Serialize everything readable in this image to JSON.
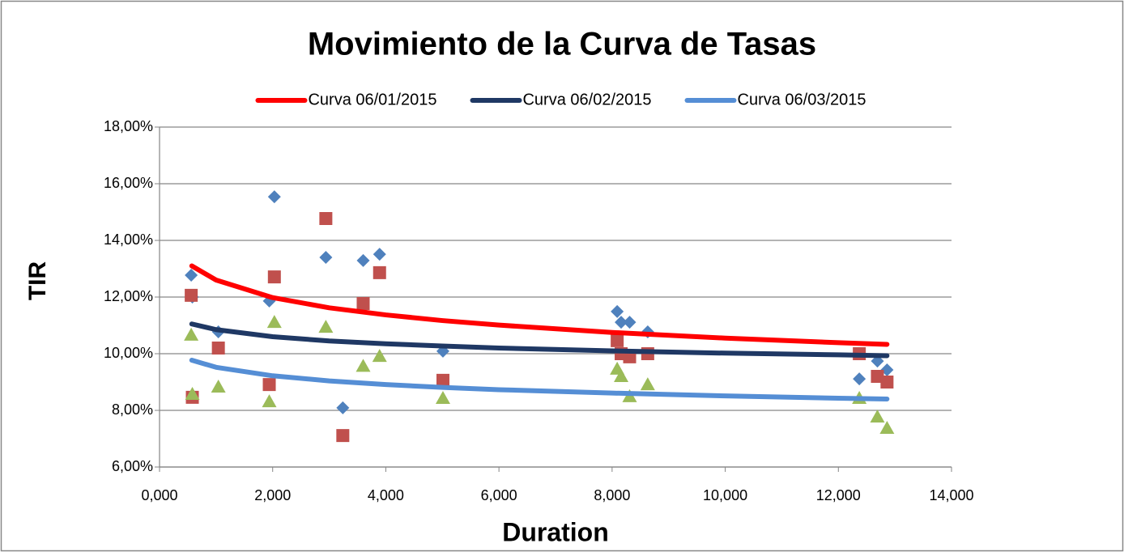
{
  "chart_data": {
    "type": "scatter",
    "title": "Movimiento de la Curva de Tasas",
    "xlabel": "Duration",
    "ylabel": "TIR",
    "xlim": [
      0,
      14
    ],
    "xticks": [
      {
        "value": 0,
        "label": "0,000"
      },
      {
        "value": 2,
        "label": "2,000"
      },
      {
        "value": 4,
        "label": "4,000"
      },
      {
        "value": 6,
        "label": "6,000"
      },
      {
        "value": 8,
        "label": "8,000"
      },
      {
        "value": 10,
        "label": "10,000"
      },
      {
        "value": 12,
        "label": "12,000"
      },
      {
        "value": 14,
        "label": "14,000"
      }
    ],
    "ylim": [
      6,
      18
    ],
    "yticks": [
      {
        "value": 6,
        "label": "6,00%"
      },
      {
        "value": 8,
        "label": "8,00%"
      },
      {
        "value": 10,
        "label": "10,00%"
      },
      {
        "value": 12,
        "label": "12,00%"
      },
      {
        "value": 14,
        "label": "14,00%"
      },
      {
        "value": 16,
        "label": "16,00%"
      },
      {
        "value": 18,
        "label": "18,00%"
      }
    ],
    "grid": true,
    "legend": "top",
    "x": [
      0.56,
      0.58,
      1.04,
      1.94,
      2.03,
      2.94,
      3.24,
      3.6,
      3.89,
      5.01,
      8.09,
      8.16,
      8.31,
      8.63,
      12.37,
      12.69,
      12.86
    ],
    "series": [
      {
        "color": "#4f81bd",
        "marker": "diamond",
        "values": [
          12.77,
          12.0,
          10.77,
          11.86,
          15.54,
          13.4,
          8.09,
          13.29,
          13.51,
          10.09,
          11.49,
          11.11,
          11.11,
          10.77,
          9.11,
          9.74,
          9.43
        ]
      },
      {
        "color": "#c0504d",
        "marker": "square",
        "values": [
          12.06,
          8.46,
          10.2,
          8.91,
          12.71,
          14.77,
          7.11,
          11.77,
          12.86,
          9.06,
          10.46,
          10.0,
          9.89,
          10.0,
          10.0,
          9.2,
          9.0
        ]
      },
      {
        "color": "#9bbb59",
        "marker": "triangle",
        "values": [
          10.66,
          8.57,
          8.83,
          8.31,
          11.11,
          10.94,
          null,
          9.56,
          9.91,
          8.43,
          9.46,
          9.2,
          8.49,
          8.91,
          8.43,
          7.77,
          7.37
        ]
      }
    ],
    "curves": [
      {
        "name": "Curva 06/01/2015",
        "color": "#ff0000",
        "x": [
          0.57,
          1,
          2,
          3,
          4,
          5,
          6,
          8,
          10,
          12,
          12.86
        ],
        "values": [
          13.1,
          12.6,
          11.98,
          11.62,
          11.37,
          11.17,
          11.01,
          10.75,
          10.55,
          10.39,
          10.33
        ]
      },
      {
        "name": "Curva 06/02/2015",
        "color": "#1f3864",
        "x": [
          0.57,
          1,
          2,
          3,
          4,
          5,
          6,
          8,
          10,
          12,
          12.86
        ],
        "values": [
          11.05,
          10.85,
          10.6,
          10.45,
          10.35,
          10.27,
          10.2,
          10.1,
          10.02,
          9.96,
          9.93
        ]
      },
      {
        "name": "Curva 06/03/2015",
        "color": "#558ed5",
        "x": [
          0.57,
          1,
          2,
          3,
          4,
          5,
          6,
          8,
          10,
          12,
          12.86
        ],
        "values": [
          9.77,
          9.52,
          9.22,
          9.04,
          8.91,
          8.81,
          8.73,
          8.61,
          8.51,
          8.43,
          8.4
        ]
      }
    ]
  }
}
